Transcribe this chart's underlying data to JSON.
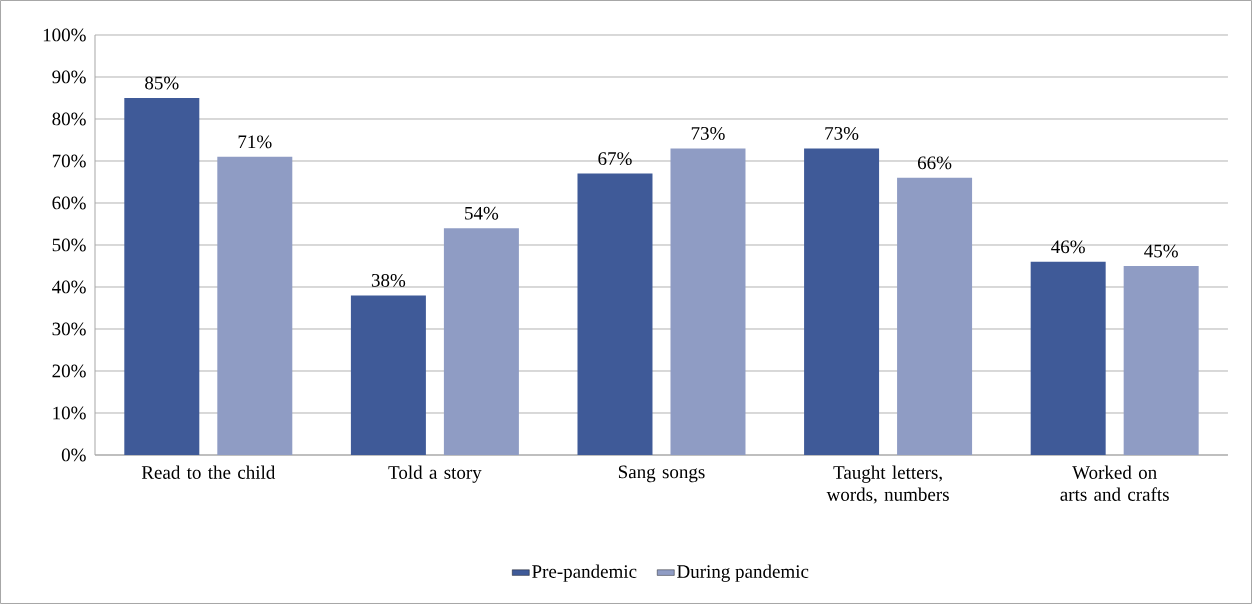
{
  "chart_data": {
    "type": "bar",
    "categories": [
      "Read to the child",
      "Told a story",
      "Sang songs",
      "Taught letters, words, numbers",
      "Worked on arts and crafts"
    ],
    "series": [
      {
        "name": "Pre-pandemic",
        "color": "#3f5a98",
        "values": [
          85,
          38,
          67,
          73,
          46
        ],
        "value_labels": [
          "85%",
          "38%",
          "67%",
          "73%",
          "46%"
        ]
      },
      {
        "name": "During pandemic",
        "color": "#8f9cc4",
        "values": [
          71,
          54,
          73,
          66,
          45
        ],
        "value_labels": [
          "71%",
          "54%",
          "73%",
          "66%",
          "45%"
        ]
      }
    ],
    "ylim": [
      0,
      100
    ],
    "yticks": [
      {
        "value": 0,
        "label": "0%"
      },
      {
        "value": 10,
        "label": "10%"
      },
      {
        "value": 20,
        "label": "20%"
      },
      {
        "value": 30,
        "label": "30%"
      },
      {
        "value": 40,
        "label": "40%"
      },
      {
        "value": 50,
        "label": "50%"
      },
      {
        "value": 60,
        "label": "60%"
      },
      {
        "value": 70,
        "label": "70%"
      },
      {
        "value": 80,
        "label": "80%"
      },
      {
        "value": 90,
        "label": "90%"
      },
      {
        "value": 100,
        "label": "100%"
      }
    ],
    "grid": "y",
    "legend": "bottom"
  }
}
